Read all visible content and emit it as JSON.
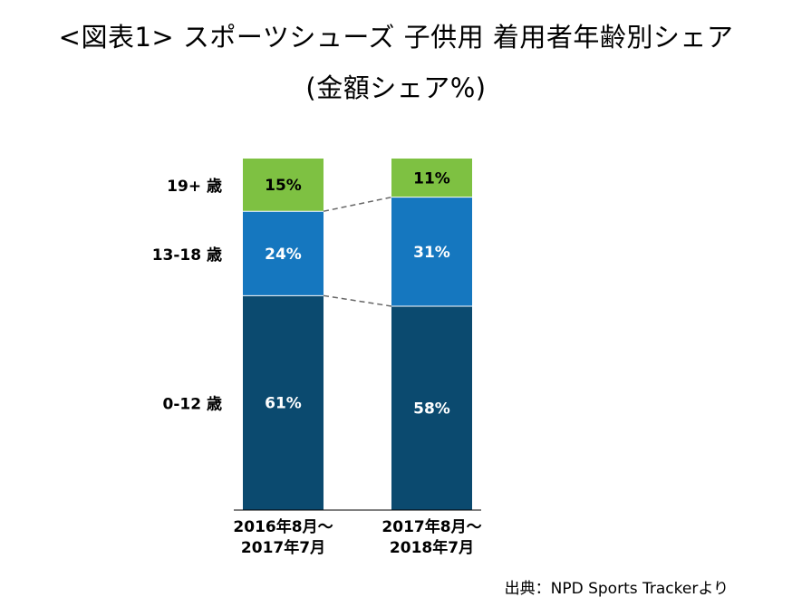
{
  "title": {
    "line1": "<図表1> スポーツシューズ 子供用 着用者年齢別シェア",
    "line2": "(金額シェア%)"
  },
  "source": "出典：NPD Sports Trackerより",
  "colors": {
    "seg_0_12": "#0b4a6f",
    "seg_13_18": "#1577bf",
    "seg_19_plus": "#7ec142",
    "text_dark_bg": "#ffffff",
    "text_light_bg": "#000000",
    "connector": "#666666",
    "axis": "#000000"
  },
  "chart_data": {
    "type": "bar",
    "stacked": true,
    "normalized_percent": true,
    "title": "スポーツシューズ 子供用 着用者年齢別シェア (金額シェア%)",
    "categories": [
      [
        "2016年8月～",
        "2017年7月"
      ],
      [
        "2017年8月～",
        "2018年7月"
      ]
    ],
    "series": [
      {
        "name": "0-12 歳",
        "values": [
          61,
          58
        ],
        "labels": [
          "61%",
          "58%"
        ]
      },
      {
        "name": "13-18 歳",
        "values": [
          24,
          31
        ],
        "labels": [
          "24%",
          "31%"
        ]
      },
      {
        "name": "19+ 歳",
        "values": [
          15,
          11
        ],
        "labels": [
          "15%",
          "11%"
        ]
      }
    ],
    "ylim": [
      0,
      100
    ],
    "xlabel": "",
    "ylabel": "",
    "legend": "left-inline",
    "series_connectors": true
  }
}
